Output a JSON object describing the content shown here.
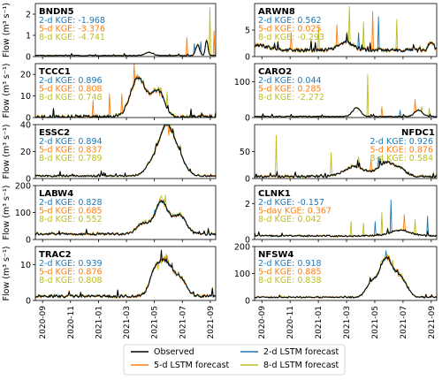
{
  "colors": {
    "observed": "#000000",
    "lstm2": "#1f77b4",
    "lstm5": "#ff7f0e",
    "lstm8": "#bcbd22"
  },
  "y_label": "Flow (m³ s⁻¹)",
  "x_tick_labels": [
    "2020-09",
    "2020-11",
    "2021-01",
    "2021-03",
    "2021-05",
    "2021-07",
    "2021-09"
  ],
  "legend": {
    "placement": "bottom-center",
    "entries": [
      {
        "key": "observed",
        "label": "Observed"
      },
      {
        "key": "lstm2",
        "label": "2-d LSTM forecast"
      },
      {
        "key": "lstm5",
        "label": "5-d LSTM forecast"
      },
      {
        "key": "lstm8",
        "label": "8-d LSTM forecast"
      }
    ]
  },
  "chart_data": [
    {
      "type": "line",
      "station": "BNDN5",
      "ylim": [
        0,
        2.5
      ],
      "yticks": [
        0,
        1,
        2
      ],
      "ytick_labels": [
        "0",
        "1",
        "2"
      ],
      "kge": [
        {
          "label": "2-d KGE",
          "value": "-1.968",
          "color": "lstm2"
        },
        {
          "label": "5-d KGE",
          "value": "-3.376",
          "color": "lstm5"
        },
        {
          "label": "8-d KGE",
          "value": "-4.741",
          "color": "lstm8"
        }
      ],
      "profile": {
        "base": 0.05,
        "noise": 0.03,
        "peaks": [
          [
            0.63,
            0.15,
            0.03
          ],
          [
            0.9,
            0.5,
            0.015
          ],
          [
            0.95,
            0.7,
            0.01
          ]
        ]
      },
      "spikes": [
        [
          0.84,
          0.9,
          "lstm5"
        ],
        [
          0.88,
          0.6,
          "lstm2"
        ],
        [
          0.92,
          0.7,
          "lstm2"
        ],
        [
          0.97,
          2.3,
          "lstm8"
        ],
        [
          0.99,
          1.2,
          "lstm5"
        ]
      ]
    },
    {
      "type": "line",
      "station": "ARWN8",
      "ylim": [
        0,
        10
      ],
      "yticks": [
        0,
        5
      ],
      "ytick_labels": [
        "0",
        "5"
      ],
      "kge": [
        {
          "label": "2-d KGE",
          "value": "0.562",
          "color": "lstm2"
        },
        {
          "label": "5-d KGE",
          "value": "0.025",
          "color": "lstm5"
        },
        {
          "label": "8-d KGE",
          "value": "-0.293",
          "color": "lstm8"
        }
      ],
      "profile": {
        "base": 1.2,
        "noise": 0.6,
        "peaks": [
          [
            0.0,
            1.0,
            0.1
          ],
          [
            0.5,
            1.5,
            0.06
          ],
          [
            0.97,
            1.5,
            0.02
          ]
        ]
      },
      "spikes": [
        [
          0.2,
          4.5,
          "lstm5"
        ],
        [
          0.35,
          5.5,
          "lstm8"
        ],
        [
          0.45,
          6.0,
          "lstm5"
        ],
        [
          0.52,
          9.5,
          "lstm8"
        ],
        [
          0.57,
          4.5,
          "lstm2"
        ],
        [
          0.6,
          6.5,
          "lstm8"
        ],
        [
          0.65,
          8.5,
          "lstm5"
        ],
        [
          0.68,
          7.5,
          "lstm2"
        ],
        [
          0.78,
          7.0,
          "lstm8"
        ]
      ]
    },
    {
      "type": "line",
      "station": "TCCC1",
      "ylim": [
        0,
        25
      ],
      "yticks": [
        0,
        10,
        20
      ],
      "ytick_labels": [
        "0",
        "10",
        "20"
      ],
      "kge": [
        {
          "label": "2-d KGE",
          "value": "0.896",
          "color": "lstm2"
        },
        {
          "label": "5-d KGE",
          "value": "0.808",
          "color": "lstm5"
        },
        {
          "label": "8-d KGE",
          "value": "0.748",
          "color": "lstm8"
        }
      ],
      "profile": {
        "base": 0.3,
        "noise": 1.5,
        "peaks": [
          [
            0.57,
            18.0,
            0.06
          ],
          [
            0.68,
            12.0,
            0.05
          ]
        ]
      },
      "spikes": [
        [
          0.32,
          8.0,
          "lstm5"
        ],
        [
          0.41,
          11.0,
          "lstm5"
        ],
        [
          0.48,
          11.0,
          "lstm5"
        ],
        [
          0.55,
          25.0,
          "lstm5"
        ],
        [
          0.62,
          13.0,
          "lstm8"
        ],
        [
          0.69,
          10.0,
          "lstm5"
        ],
        [
          0.73,
          12.0,
          "lstm8"
        ]
      ]
    },
    {
      "type": "line",
      "station": "CARO2",
      "ylim": [
        0,
        150
      ],
      "yticks": [
        0,
        100
      ],
      "ytick_labels": [
        "0",
        "100"
      ],
      "kge": [
        {
          "label": "2-d KGE",
          "value": "0.044",
          "color": "lstm2"
        },
        {
          "label": "5-d KGE",
          "value": "0.285",
          "color": "lstm5"
        },
        {
          "label": "8-d KGE",
          "value": "-2.272",
          "color": "lstm8"
        }
      ],
      "profile": {
        "base": 3,
        "noise": 2.5,
        "peaks": [
          [
            0.56,
            25.0,
            0.03
          ],
          [
            0.9,
            18.0,
            0.03
          ]
        ]
      },
      "spikes": [
        [
          0.62,
          120.0,
          "lstm8"
        ],
        [
          0.7,
          30.0,
          "lstm5"
        ],
        [
          0.8,
          20.0,
          "lstm2"
        ],
        [
          0.88,
          50.0,
          "lstm5"
        ],
        [
          0.92,
          30.0,
          "lstm8"
        ],
        [
          0.96,
          25.0,
          "lstm8"
        ]
      ]
    },
    {
      "type": "line",
      "station": "ESSC2",
      "ylim": [
        0,
        40
      ],
      "yticks": [
        0,
        20,
        40
      ],
      "ytick_labels": [
        "0",
        "20",
        "40"
      ],
      "kge": [
        {
          "label": "2-d KGE",
          "value": "0.894",
          "color": "lstm2"
        },
        {
          "label": "5-d KGE",
          "value": "0.837",
          "color": "lstm5"
        },
        {
          "label": "8-d KGE",
          "value": "0.789",
          "color": "lstm8"
        }
      ],
      "profile": {
        "base": 2,
        "noise": 1.2,
        "peaks": [
          [
            0.72,
            30.0,
            0.05
          ],
          [
            0.78,
            18.0,
            0.06
          ],
          [
            0.65,
            10.0,
            0.05
          ]
        ]
      },
      "spikes": [
        [
          0.71,
          36.0,
          "lstm8"
        ],
        [
          0.74,
          32.0,
          "lstm5"
        ],
        [
          0.8,
          24.0,
          "lstm2"
        ]
      ]
    },
    {
      "type": "line",
      "station": "NFDC1",
      "ylim": [
        0,
        100
      ],
      "yticks": [
        0,
        50
      ],
      "ytick_labels": [
        "0",
        "50"
      ],
      "kge": [
        {
          "label": "2-d KGE",
          "value": "0.926",
          "color": "lstm2"
        },
        {
          "label": "5-d KGE",
          "value": "0.876",
          "color": "lstm5"
        },
        {
          "label": "8-d KGE",
          "value": "0.584",
          "color": "lstm8"
        }
      ],
      "profile": {
        "base": 4,
        "noise": 4.0,
        "peaks": [
          [
            0.55,
            18.0,
            0.08
          ],
          [
            0.72,
            25.0,
            0.06
          ],
          [
            0.8,
            12.0,
            0.05
          ]
        ]
      },
      "spikes": [
        [
          0.12,
          80.0,
          "lstm8"
        ],
        [
          0.42,
          48.0,
          "lstm8"
        ],
        [
          0.57,
          40.0,
          "lstm8"
        ],
        [
          0.64,
          35.0,
          "lstm5"
        ],
        [
          0.68,
          40.0,
          "lstm2"
        ],
        [
          0.75,
          30.0,
          "lstm8"
        ]
      ]
    },
    {
      "type": "line",
      "station": "LABW4",
      "ylim": [
        0,
        200
      ],
      "yticks": [
        0,
        100,
        200
      ],
      "ytick_labels": [
        "0",
        "100",
        "200"
      ],
      "kge": [
        {
          "label": "2-d KGE",
          "value": "0.828",
          "color": "lstm2"
        },
        {
          "label": "5-d KGE",
          "value": "0.685",
          "color": "lstm5"
        },
        {
          "label": "8-d KGE",
          "value": "0.552",
          "color": "lstm8"
        }
      ],
      "profile": {
        "base": 20,
        "noise": 8.0,
        "peaks": [
          [
            0.7,
            120.0,
            0.05
          ],
          [
            0.8,
            70.0,
            0.05
          ],
          [
            0.6,
            40.0,
            0.05
          ]
        ]
      },
      "spikes": [
        [
          0.69,
          150.0,
          "lstm5"
        ],
        [
          0.72,
          165.0,
          "lstm8"
        ],
        [
          0.66,
          110.0,
          "lstm2"
        ]
      ]
    },
    {
      "type": "line",
      "station": "CLNK1",
      "ylim": [
        0,
        3
      ],
      "yticks": [
        0,
        2
      ],
      "ytick_labels": [
        "0",
        "2"
      ],
      "kge": [
        {
          "label": "2-d KGE",
          "value": "-0.157",
          "color": "lstm2"
        },
        {
          "label": "5-day KGE",
          "value": "0.367",
          "color": "lstm5"
        },
        {
          "label": "8-d KGE",
          "value": "0.042",
          "color": "lstm8"
        }
      ],
      "profile": {
        "base": 0.2,
        "noise": 0.08,
        "peaks": [
          [
            0.8,
            0.3,
            0.08
          ]
        ]
      },
      "spikes": [
        [
          0.53,
          1.0,
          "lstm8"
        ],
        [
          0.6,
          0.9,
          "lstm8"
        ],
        [
          0.66,
          1.0,
          "lstm2"
        ],
        [
          0.7,
          1.5,
          "lstm8"
        ],
        [
          0.75,
          2.2,
          "lstm2"
        ],
        [
          0.82,
          1.4,
          "lstm5"
        ],
        [
          0.88,
          1.1,
          "lstm8"
        ],
        [
          0.95,
          1.3,
          "lstm2"
        ]
      ]
    },
    {
      "type": "line",
      "station": "TRAC2",
      "ylim": [
        0,
        15
      ],
      "yticks": [
        0,
        10
      ],
      "ytick_labels": [
        "0",
        "10"
      ],
      "kge": [
        {
          "label": "2-d KGE",
          "value": "0.939",
          "color": "lstm2"
        },
        {
          "label": "5-d KGE",
          "value": "0.876",
          "color": "lstm5"
        },
        {
          "label": "8-d KGE",
          "value": "0.808",
          "color": "lstm8"
        }
      ],
      "profile": {
        "base": 1.2,
        "noise": 0.7,
        "peaks": [
          [
            0.72,
            9.0,
            0.05
          ],
          [
            0.66,
            6.0,
            0.04
          ],
          [
            0.8,
            5.0,
            0.05
          ]
        ]
      },
      "spikes": [
        [
          0.7,
          14.0,
          "observed"
        ],
        [
          0.73,
          12.5,
          "lstm5"
        ],
        [
          0.76,
          10.5,
          "lstm2"
        ],
        [
          0.68,
          8.5,
          "lstm8"
        ]
      ]
    },
    {
      "type": "line",
      "station": "NFSW4",
      "ylim": [
        0,
        200
      ],
      "yticks": [
        0,
        100,
        200
      ],
      "ytick_labels": [
        "0",
        "100",
        "200"
      ],
      "kge": [
        {
          "label": "2-d KGE",
          "value": "0.918",
          "color": "lstm2"
        },
        {
          "label": "5-d KGE",
          "value": "0.885",
          "color": "lstm5"
        },
        {
          "label": "8-d KGE",
          "value": "0.838",
          "color": "lstm8"
        }
      ],
      "profile": {
        "base": 12,
        "noise": 5.0,
        "peaks": [
          [
            0.72,
            140.0,
            0.05
          ],
          [
            0.64,
            50.0,
            0.04
          ],
          [
            0.8,
            70.0,
            0.05
          ]
        ]
      },
      "spikes": [
        [
          0.72,
          185.0,
          "lstm2"
        ],
        [
          0.74,
          165.0,
          "lstm5"
        ],
        [
          0.76,
          150.0,
          "lstm8"
        ]
      ]
    }
  ]
}
